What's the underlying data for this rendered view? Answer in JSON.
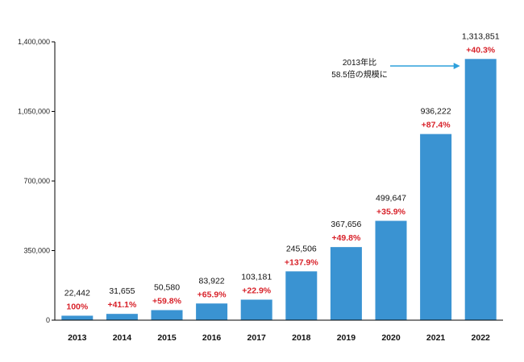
{
  "chart_data": {
    "type": "bar",
    "categories": [
      "2013",
      "2014",
      "2015",
      "2016",
      "2017",
      "2018",
      "2019",
      "2020",
      "2021",
      "2022"
    ],
    "values": [
      22442,
      31655,
      50580,
      83922,
      103181,
      245506,
      367656,
      499647,
      936222,
      1313851
    ],
    "value_labels": [
      "22,442",
      "31,655",
      "50,580",
      "83,922",
      "103,181",
      "245,506",
      "367,656",
      "499,647",
      "936,222",
      "1,313,851"
    ],
    "growth_labels": [
      "100%",
      "+41.1%",
      "+59.8%",
      "+65.9%",
      "+22.9%",
      "+137.9%",
      "+49.8%",
      "+35.9%",
      "+87.4%",
      "+40.3%"
    ],
    "yticks": [
      0,
      350000,
      700000,
      1050000,
      1400000
    ],
    "ytick_labels": [
      "0",
      "350,000",
      "700,000",
      "1,050,000",
      "1,400,000"
    ],
    "ylim": [
      0,
      1400000
    ],
    "grid": false,
    "annotation": {
      "line1": "2013年比",
      "line2": "58.5倍の規模に"
    },
    "colors": {
      "bar": "#3a93d2",
      "growth_text": "#d8222a",
      "arrow": "#2ea0dc",
      "axis": "#000000"
    }
  }
}
